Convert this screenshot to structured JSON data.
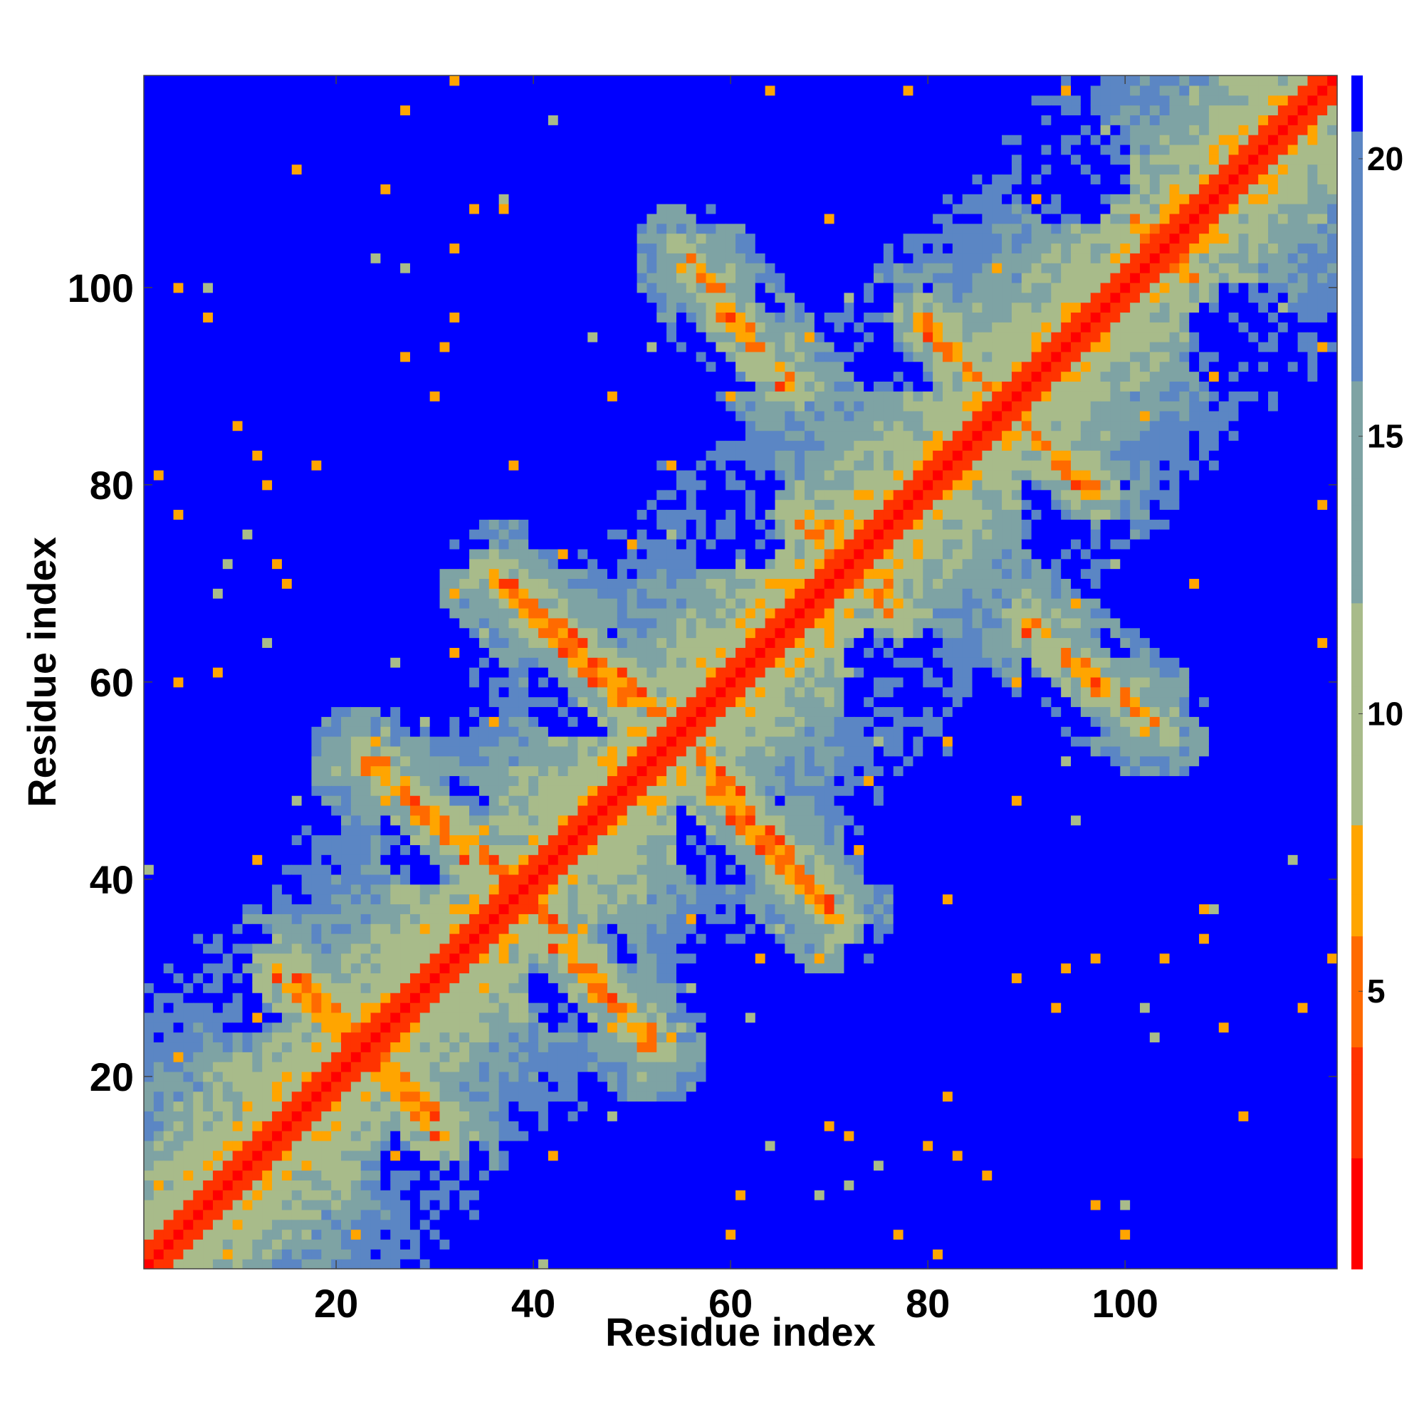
{
  "chart_data": {
    "type": "heatmap",
    "title": "",
    "xlabel": "Residue index",
    "ylabel": "Residue index",
    "x_range": [
      1,
      121
    ],
    "y_range": [
      1,
      121
    ],
    "x_ticks": [
      20,
      40,
      60,
      80,
      100
    ],
    "y_ticks": [
      20,
      40,
      60,
      80,
      100
    ],
    "colorbar": {
      "range": [
        0,
        21.5
      ],
      "ticks": [
        5,
        10,
        15,
        20
      ],
      "placement": "right"
    },
    "colors": {
      "close": "#ff0000",
      "contact": "#ff6a00",
      "near": "#ffa500",
      "mid_light": "#a8bb8a",
      "mid": "#7ea3a4",
      "far": "#5b86c4",
      "very_far": "#0000ff"
    },
    "secondary_structure_contacts": [
      {
        "i_start": 23,
        "j_start": 23,
        "i_end": 31,
        "j_end": 15,
        "kind": "antiparallel"
      },
      {
        "i_start": 14,
        "j_start": 31,
        "i_end": 23,
        "j_end": 22,
        "kind": "antiparallel"
      },
      {
        "i_start": 39,
        "j_start": 39,
        "i_end": 52,
        "j_end": 23,
        "kind": "antiparallel"
      },
      {
        "i_start": 24,
        "j_start": 52,
        "i_end": 34,
        "j_end": 42,
        "kind": "antiparallel"
      },
      {
        "i_start": 55,
        "j_start": 55,
        "i_end": 71,
        "j_end": 36,
        "kind": "antiparallel"
      },
      {
        "i_start": 36,
        "j_start": 71,
        "i_end": 50,
        "j_end": 57,
        "kind": "antiparallel"
      },
      {
        "i_start": 72,
        "j_start": 72,
        "i_end": 77,
        "j_end": 69,
        "kind": "antiparallel"
      },
      {
        "i_start": 67,
        "j_start": 77,
        "i_end": 72,
        "j_end": 72,
        "kind": "antiparallel"
      },
      {
        "i_start": 88,
        "j_start": 88,
        "i_end": 97,
        "j_end": 79,
        "kind": "antiparallel"
      },
      {
        "i_start": 79,
        "j_start": 97,
        "i_end": 88,
        "j_end": 88,
        "kind": "antiparallel"
      },
      {
        "i_start": 91,
        "j_start": 65,
        "i_end": 103,
        "j_end": 56,
        "kind": "antiparallel"
      },
      {
        "i_start": 59,
        "j_start": 98,
        "i_end": 66,
        "j_end": 90,
        "kind": "antiparallel"
      },
      {
        "i_start": 104,
        "j_start": 104,
        "i_end": 107,
        "j_end": 101,
        "kind": "antiparallel"
      }
    ]
  }
}
